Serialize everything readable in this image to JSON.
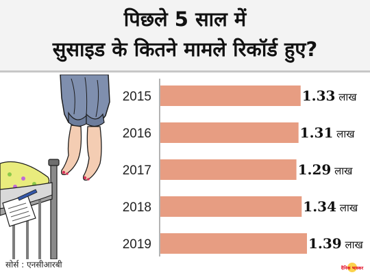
{
  "header": {
    "title_line1": "पिछले 5 साल में",
    "title_line2": "सुसाइड के कितने मामले रिकॉर्ड हुए?"
  },
  "footer": {
    "source": "सोर्स : एनसीआरबी",
    "logo_text": "दैनिक भास्कर"
  },
  "colors": {
    "bar": "#e79d82",
    "axis": "#9a9a9a",
    "header_bg": "#f3f3f3",
    "logo_red": "#e2001a"
  },
  "chart_data": {
    "type": "bar",
    "orientation": "horizontal",
    "title": "पिछले 5 साल में सुसाइड के कितने मामले रिकॉर्ड हुए?",
    "categories": [
      "2015",
      "2016",
      "2017",
      "2018",
      "2019"
    ],
    "values": [
      1.33,
      1.31,
      1.29,
      1.34,
      1.39
    ],
    "unit": "लाख",
    "data_labels": [
      "1.33 लाख",
      "1.31 लाख",
      "1.29 लाख",
      "1.34 लाख",
      "1.39 लाख"
    ],
    "xlim": [
      0,
      1.39
    ],
    "grid": false,
    "legend": "none"
  }
}
